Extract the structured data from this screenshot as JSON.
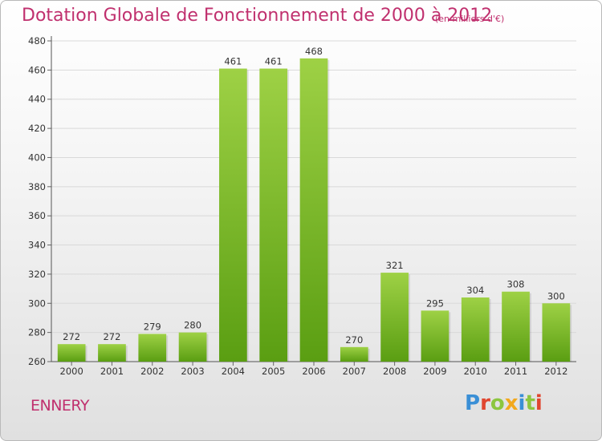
{
  "title": "Dotation Globale de Fonctionnement de 2000 à 2012",
  "subtitle": "(en milliers d'€)",
  "commune": "ENNERY",
  "logo": {
    "text": "Proxiti",
    "letters": [
      {
        "ch": "P",
        "color": "#3a8fd6"
      },
      {
        "ch": "r",
        "color": "#e0462f"
      },
      {
        "ch": "o",
        "color": "#8cc63f"
      },
      {
        "ch": "x",
        "color": "#f2a81d"
      },
      {
        "ch": "i",
        "color": "#3a8fd6"
      },
      {
        "ch": "t",
        "color": "#8cc63f"
      },
      {
        "ch": "i",
        "color": "#e0462f"
      }
    ]
  },
  "colors": {
    "accent": "#c0306e",
    "bar_light": "#9ed145",
    "bar_dark": "#5a9e12",
    "grid": "#d9d9d9"
  },
  "chart_data": {
    "type": "bar",
    "categories": [
      "2000",
      "2001",
      "2002",
      "2003",
      "2004",
      "2005",
      "2006",
      "2007",
      "2008",
      "2009",
      "2010",
      "2011",
      "2012"
    ],
    "values": [
      272,
      272,
      279,
      280,
      461,
      461,
      468,
      270,
      321,
      295,
      304,
      308,
      300
    ],
    "ylim": [
      260,
      480
    ],
    "yticks": [
      260,
      280,
      300,
      320,
      340,
      360,
      380,
      400,
      420,
      440,
      460,
      480
    ],
    "grid": true,
    "legend": "none"
  }
}
